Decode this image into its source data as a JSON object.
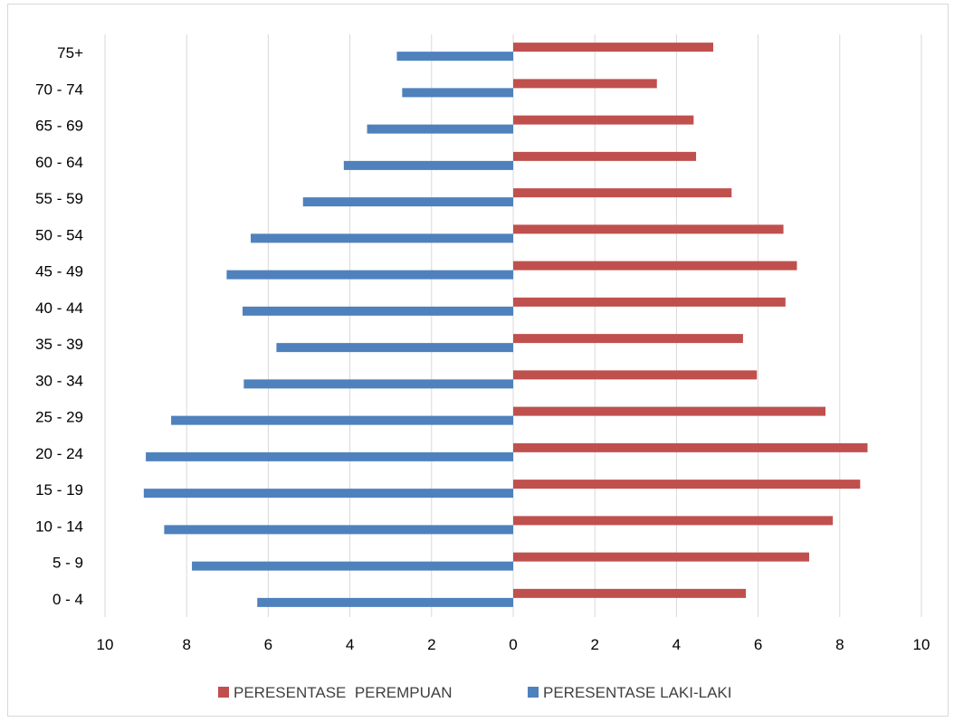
{
  "chart_data": {
    "type": "bar",
    "orientation": "horizontal",
    "layout": "population-pyramid",
    "categories": [
      "0 - 4",
      "5 - 9",
      "10 - 14",
      "15 - 19",
      "20 - 24",
      "25 - 29",
      "30 - 34",
      "35 - 39",
      "40 - 44",
      "45 - 49",
      "50 - 54",
      "55 - 59",
      "60 - 64",
      "65 - 69",
      "70 - 74",
      "75+"
    ],
    "series": [
      {
        "name": "PERESENTASE  PEREMPUAN",
        "side": "right",
        "color": "#C0504D",
        "values": [
          5.7,
          7.25,
          7.83,
          8.5,
          8.68,
          7.65,
          5.97,
          5.63,
          6.67,
          6.95,
          6.62,
          5.35,
          4.48,
          4.42,
          3.52,
          4.9
        ]
      },
      {
        "name": "PERESENTASE LAKI-LAKI",
        "side": "left",
        "color": "#4F81BD",
        "values": [
          6.27,
          7.87,
          8.55,
          9.05,
          9.0,
          8.38,
          6.6,
          5.8,
          6.63,
          7.02,
          6.43,
          5.15,
          4.15,
          3.58,
          2.72,
          2.85
        ]
      }
    ],
    "xaxis": {
      "min": -10,
      "max": 10,
      "ticks": [
        -10,
        -8,
        -6,
        -4,
        -2,
        0,
        2,
        4,
        6,
        8,
        10
      ],
      "tick_labels": [
        "10",
        "8",
        "6",
        "4",
        "2",
        "0",
        "2",
        "4",
        "6",
        "8",
        "10"
      ]
    },
    "grid": "vertical",
    "legend_position": "bottom",
    "title": "",
    "xlabel": "",
    "ylabel": ""
  }
}
